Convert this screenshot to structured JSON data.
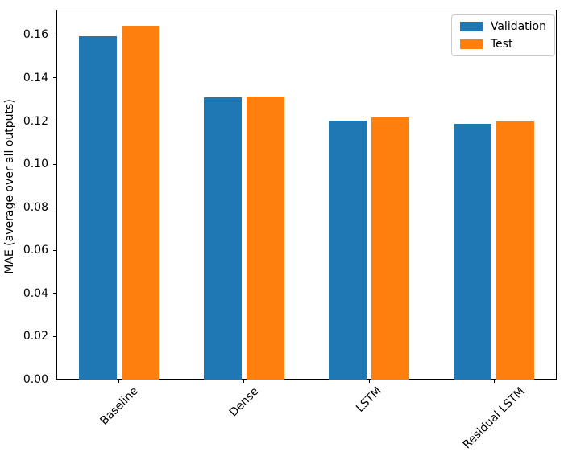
{
  "chart_data": {
    "type": "bar",
    "categories": [
      "Baseline",
      "Dense",
      "LSTM",
      "Residual LSTM"
    ],
    "series": [
      {
        "name": "Validation",
        "color": "#1f77b4",
        "values": [
          0.1593,
          0.1312,
          0.1203,
          0.1188
        ]
      },
      {
        "name": "Test",
        "color": "#ff7f0e",
        "values": [
          0.1641,
          0.1313,
          0.1218,
          0.1197
        ]
      }
    ],
    "title": "",
    "xlabel": "",
    "ylabel": "MAE (average over all outputs)",
    "ylim": [
      0,
      0.1717
    ],
    "yticks": [
      0.0,
      0.02,
      0.04,
      0.06,
      0.08,
      0.1,
      0.12,
      0.14,
      0.16
    ],
    "ytick_labels": [
      "0.00",
      "0.02",
      "0.04",
      "0.06",
      "0.08",
      "0.10",
      "0.12",
      "0.14",
      "0.16"
    ],
    "xtick_rotation": 45,
    "bar_width": 0.3,
    "bar_offset": 0.17,
    "grid": false,
    "legend": {
      "position": "upper right",
      "entries": [
        "Validation",
        "Test"
      ]
    },
    "axis_color": "#000000",
    "text_color": "#000000"
  }
}
